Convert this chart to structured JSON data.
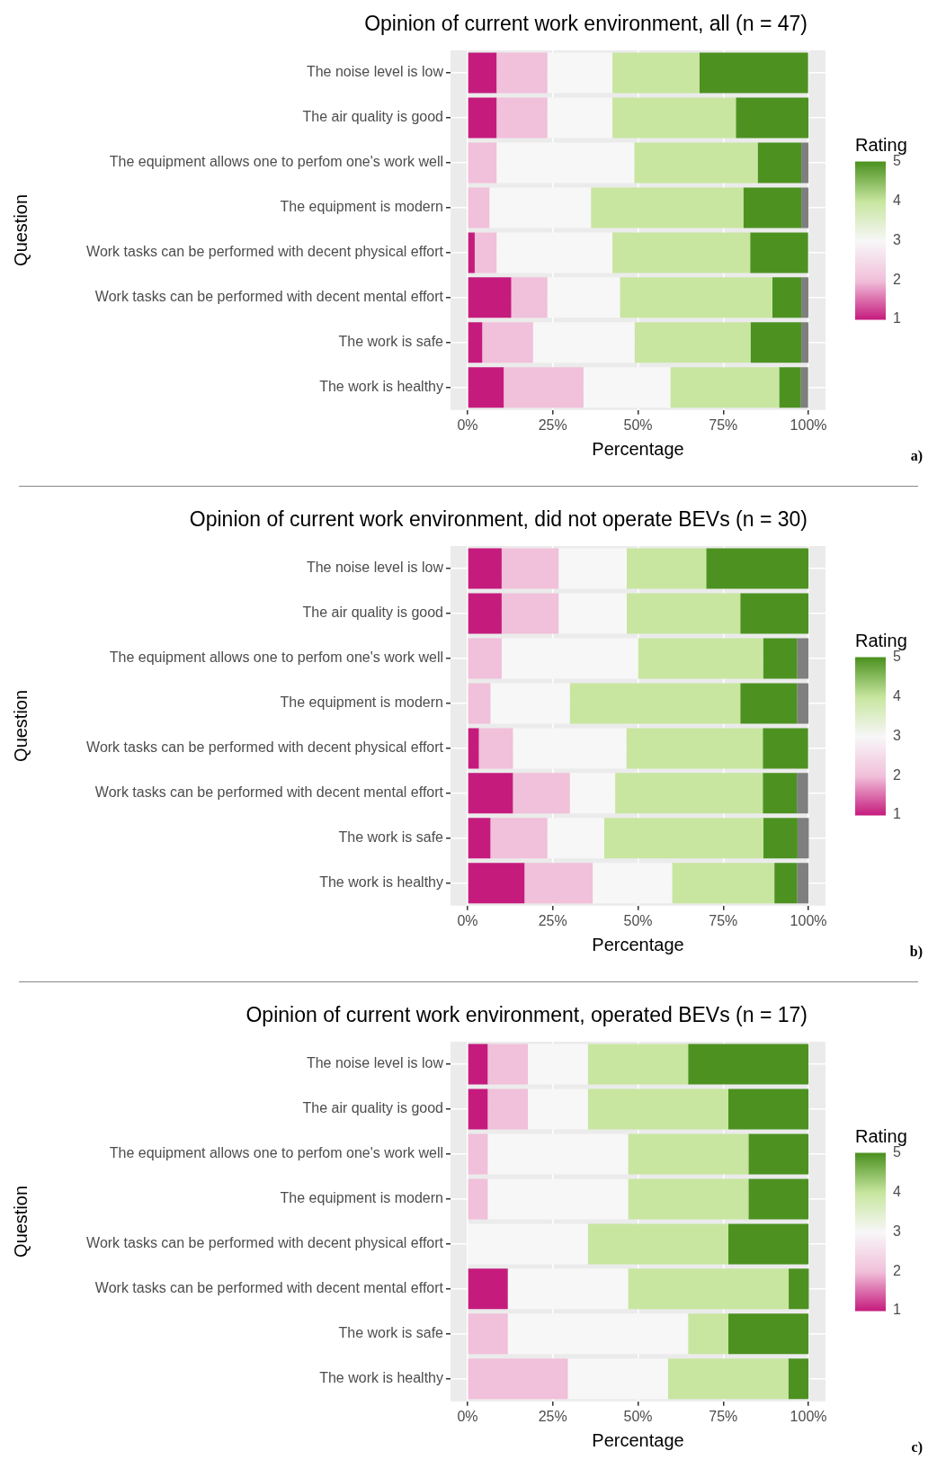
{
  "chart_data": [
    {
      "type": "bar",
      "orientation": "horizontal",
      "stacked": true,
      "title": "Opinion of current work environment, all (n = 47)",
      "xlabel": "Percentage",
      "ylabel": "Question",
      "clabel": "Rating",
      "clim": [
        1,
        5
      ],
      "cticks": [
        1,
        2,
        3,
        4,
        5
      ],
      "grid": true,
      "annotations": [
        "a)"
      ],
      "categories": [
        "The noise level is low",
        "The air quality is good",
        "The equipment allows one to perfom one's work well",
        "The equipment is modern",
        "Work tasks can be performed with decent physical effort",
        "Work tasks can be performed with decent mental effort",
        "The work is safe",
        "The work is healthy"
      ],
      "xlim": [
        -5,
        105
      ],
      "xticks": [
        {
          "value": 0,
          "label": "0%"
        },
        {
          "value": 25,
          "label": "25%"
        },
        {
          "value": 50,
          "label": "50%"
        },
        {
          "value": 75,
          "label": "75%"
        },
        {
          "value": 100,
          "label": "100%"
        }
      ],
      "series": [
        {
          "color": "#c51b7d",
          "values": [
            8.5,
            8.5,
            0,
            0,
            2.1,
            12.8,
            4.3,
            10.6
          ]
        },
        {
          "color": "#f1c0da",
          "values": [
            14.9,
            14.9,
            8.5,
            6.4,
            6.4,
            10.6,
            14.9,
            23.4
          ]
        },
        {
          "color": "#f7f7f7",
          "values": [
            19.1,
            19.1,
            40.4,
            29.8,
            34.0,
            21.3,
            29.8,
            25.5
          ]
        },
        {
          "color": "#c8e6a0",
          "values": [
            25.5,
            36.2,
            36.2,
            44.7,
            40.4,
            44.7,
            34.0,
            31.9
          ]
        },
        {
          "color": "#4d9221",
          "values": [
            31.9,
            21.3,
            12.8,
            17.0,
            17.0,
            8.5,
            14.9,
            6.4
          ]
        },
        {
          "color": "#7f7f7f",
          "values": [
            0,
            0,
            2.1,
            2.1,
            0,
            2.1,
            2.1,
            2.1
          ]
        }
      ]
    },
    {
      "type": "bar",
      "orientation": "horizontal",
      "stacked": true,
      "title": "Opinion of current work environment, did not operate BEVs (n = 30)",
      "xlabel": "Percentage",
      "ylabel": "Question",
      "clabel": "Rating",
      "clim": [
        1,
        5
      ],
      "cticks": [
        1,
        2,
        3,
        4,
        5
      ],
      "grid": true,
      "annotations": [
        "b)"
      ],
      "categories": [
        "The noise level is low",
        "The air quality is good",
        "The equipment allows one to perfom one's work well",
        "The equipment is modern",
        "Work tasks can be performed with decent physical effort",
        "Work tasks can be performed with decent mental effort",
        "The work is safe",
        "The work is healthy"
      ],
      "xlim": [
        -5,
        105
      ],
      "xticks": [
        {
          "value": 0,
          "label": "0%"
        },
        {
          "value": 25,
          "label": "25%"
        },
        {
          "value": 50,
          "label": "50%"
        },
        {
          "value": 75,
          "label": "75%"
        },
        {
          "value": 100,
          "label": "100%"
        }
      ],
      "series": [
        {
          "color": "#c51b7d",
          "values": [
            10,
            10,
            0,
            0,
            3.3,
            13.3,
            6.7,
            16.7
          ]
        },
        {
          "color": "#f1c0da",
          "values": [
            16.7,
            16.7,
            10,
            6.7,
            10,
            16.7,
            16.7,
            20
          ]
        },
        {
          "color": "#f7f7f7",
          "values": [
            20,
            20,
            40,
            23.3,
            33.3,
            13.3,
            16.7,
            23.3
          ]
        },
        {
          "color": "#c8e6a0",
          "values": [
            23.3,
            33.3,
            36.7,
            50,
            40,
            43.3,
            46.7,
            30
          ]
        },
        {
          "color": "#4d9221",
          "values": [
            30,
            20,
            10,
            16.7,
            13.3,
            10,
            10,
            6.7
          ]
        },
        {
          "color": "#7f7f7f",
          "values": [
            0,
            0,
            3.3,
            3.3,
            0,
            3.3,
            3.3,
            3.3
          ]
        }
      ]
    },
    {
      "type": "bar",
      "orientation": "horizontal",
      "stacked": true,
      "title": "Opinion of current work environment, operated BEVs (n = 17)",
      "xlabel": "Percentage",
      "ylabel": "Question",
      "clabel": "Rating",
      "clim": [
        1,
        5
      ],
      "cticks": [
        1,
        2,
        3,
        4,
        5
      ],
      "grid": true,
      "annotations": [
        "c)"
      ],
      "categories": [
        "The noise level is low",
        "The air quality is good",
        "The equipment allows one to perfom one's work well",
        "The equipment is modern",
        "Work tasks can be performed with decent physical effort",
        "Work tasks can be performed with decent mental effort",
        "The work is safe",
        "The work is healthy"
      ],
      "xlim": [
        -5,
        105
      ],
      "xticks": [
        {
          "value": 0,
          "label": "0%"
        },
        {
          "value": 25,
          "label": "25%"
        },
        {
          "value": 50,
          "label": "50%"
        },
        {
          "value": 75,
          "label": "75%"
        },
        {
          "value": 100,
          "label": "100%"
        }
      ],
      "series": [
        {
          "color": "#c51b7d",
          "values": [
            5.9,
            5.9,
            0,
            0,
            0,
            11.8,
            0,
            0
          ]
        },
        {
          "color": "#f1c0da",
          "values": [
            11.8,
            11.8,
            5.9,
            5.9,
            0,
            0,
            11.8,
            29.4
          ]
        },
        {
          "color": "#f7f7f7",
          "values": [
            17.6,
            17.6,
            41.2,
            41.2,
            35.3,
            35.3,
            52.9,
            29.4
          ]
        },
        {
          "color": "#c8e6a0",
          "values": [
            29.4,
            41.2,
            35.3,
            35.3,
            41.2,
            47.1,
            11.8,
            35.3
          ]
        },
        {
          "color": "#4d9221",
          "values": [
            35.3,
            23.5,
            17.6,
            17.6,
            23.5,
            5.9,
            23.5,
            5.9
          ]
        }
      ]
    }
  ]
}
